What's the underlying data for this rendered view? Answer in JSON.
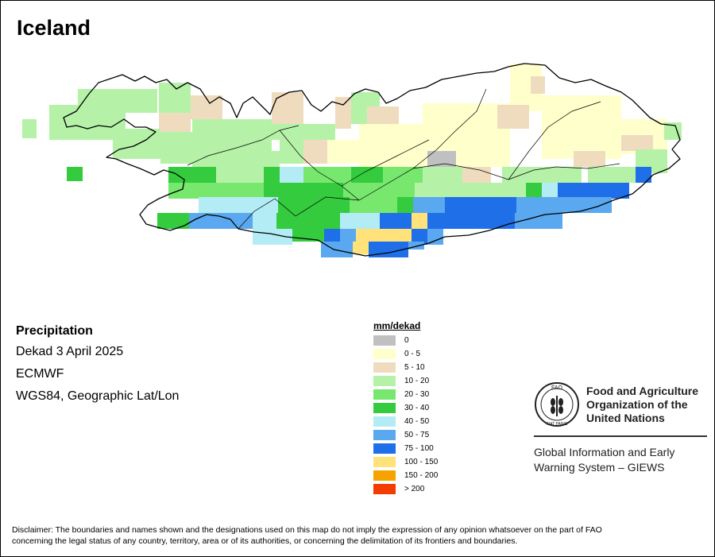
{
  "map_title": "Iceland",
  "info": {
    "variable": "Precipitation",
    "period": "Dekad 3 April 2025",
    "source": "ECMWF",
    "projection": "WGS84, Geographic Lat/Lon"
  },
  "legend": {
    "title": "mm/dekad",
    "items": [
      {
        "label": "0",
        "color": "#c0c0c0"
      },
      {
        "label": "0 - 5",
        "color": "#ffffcc"
      },
      {
        "label": "5 - 10",
        "color": "#efdcbf"
      },
      {
        "label": "10 - 20",
        "color": "#b5f2a8"
      },
      {
        "label": "20 - 30",
        "color": "#77e86d"
      },
      {
        "label": "30 - 40",
        "color": "#34cc3e"
      },
      {
        "label": "40 - 50",
        "color": "#b3ecf4"
      },
      {
        "label": "50 - 75",
        "color": "#5aa8ef"
      },
      {
        "label": "75 - 100",
        "color": "#1f6fe8"
      },
      {
        "label": "100 - 150",
        "color": "#ffe27a"
      },
      {
        "label": "150 - 200",
        "color": "#f6a300"
      },
      {
        "label": "> 200",
        "color": "#f53c00"
      }
    ]
  },
  "fao": {
    "org_line1": "Food and Agriculture",
    "org_line2": "Organization of the",
    "org_line3": "United Nations",
    "logo_text": "FAO",
    "logo_motto": "FIAT PANIS",
    "giews_line1": "Global Information and Early",
    "giews_line2": "Warning System – GIEWS"
  },
  "disclaimer_line1": "Disclaimer: The boundaries and names shown and the designations used on this map do not imply the expression of any opinion whatsoever on the part of FAO",
  "disclaimer_line2": "concerning the legal status of any country, territory, area or of its authorities, or concerning the delimitation of its frontiers and boundaries."
}
